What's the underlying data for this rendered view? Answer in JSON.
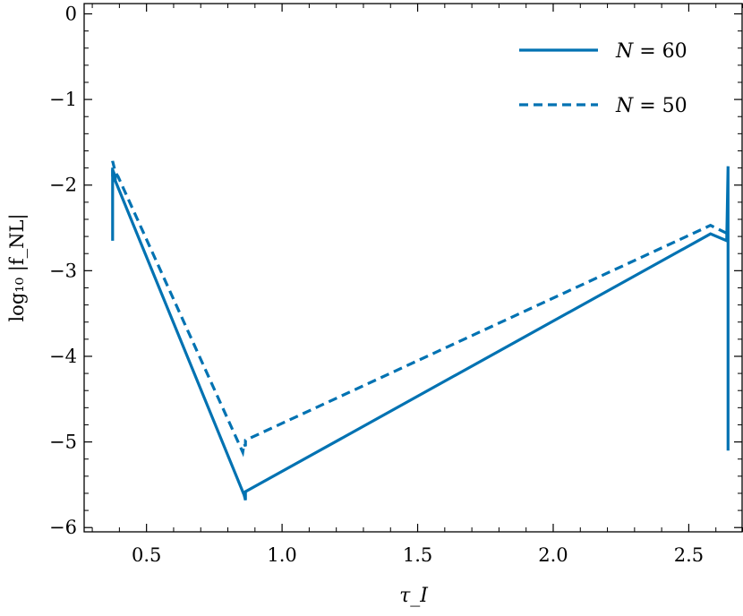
{
  "chart_data": {
    "type": "line",
    "title": "",
    "xlabel": "τ_I",
    "ylabel": "log₁₀ |f_NL|",
    "xlim": [
      0.27,
      2.7
    ],
    "ylim": [
      -6.05,
      0.12
    ],
    "x_ticks": [
      0.5,
      1.0,
      1.5,
      2.0,
      2.5
    ],
    "x_tick_labels": [
      "0.5",
      "1.0",
      "1.5",
      "2.0",
      "2.5"
    ],
    "y_ticks": [
      -6,
      -5,
      -4,
      -3,
      -2,
      -1,
      0
    ],
    "y_tick_labels": [
      "−6",
      "−5",
      "−4",
      "−3",
      "−2",
      "−1",
      "0"
    ],
    "grid": false,
    "legend_position": "top-right",
    "color": "#0072b2",
    "series": [
      {
        "name": "N = 60",
        "line_style": "solid",
        "points": [
          [
            0.375,
            -2.65
          ],
          [
            0.375,
            -1.82
          ],
          [
            0.385,
            -1.9
          ],
          [
            0.385,
            -1.95
          ],
          [
            0.86,
            -5.62
          ],
          [
            0.865,
            -5.68
          ],
          [
            0.865,
            -5.58
          ],
          [
            2.58,
            -2.57
          ],
          [
            2.64,
            -2.65
          ],
          [
            2.645,
            -1.78
          ],
          [
            2.645,
            -5.1
          ]
        ]
      },
      {
        "name": "N = 50",
        "line_style": "dashed",
        "points": [
          [
            0.375,
            -1.9
          ],
          [
            0.375,
            -1.72
          ],
          [
            0.385,
            -1.85
          ],
          [
            0.395,
            -1.9
          ],
          [
            0.855,
            -5.12
          ],
          [
            0.86,
            -5.02
          ],
          [
            0.865,
            -5.05
          ],
          [
            0.865,
            -4.98
          ],
          [
            2.58,
            -2.47
          ],
          [
            2.645,
            -2.57
          ]
        ]
      }
    ],
    "legend": [
      {
        "label_main": "N",
        "label_rest": " = 60",
        "line_style": "solid"
      },
      {
        "label_main": "N",
        "label_rest": " = 50",
        "line_style": "dashed"
      }
    ]
  }
}
